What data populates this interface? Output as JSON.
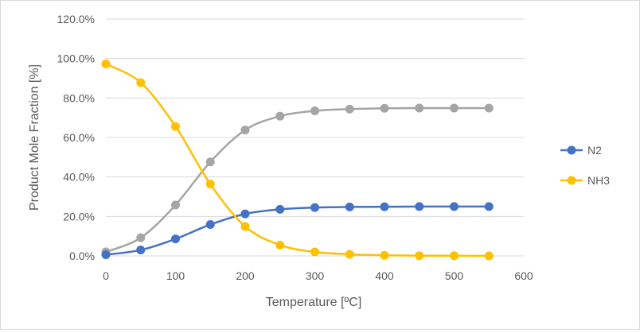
{
  "chart_data": {
    "type": "line",
    "title": "",
    "xlabel": "Temperature [ºC]",
    "ylabel": "Product Mole Fraction [%]",
    "xlim": [
      0,
      600
    ],
    "ylim": [
      0,
      120
    ],
    "x_ticks": [
      "0",
      "100",
      "200",
      "300",
      "400",
      "500",
      "600"
    ],
    "y_ticks": [
      "0.0%",
      "20.0%",
      "40.0%",
      "60.0%",
      "80.0%",
      "100.0%",
      "120.0%"
    ],
    "x_tick_values": [
      0,
      100,
      200,
      300,
      400,
      500,
      600
    ],
    "y_tick_values": [
      0,
      20,
      40,
      60,
      80,
      100,
      120
    ],
    "grid": "horizontal",
    "smooth": true,
    "legend_position": "right",
    "x": [
      0,
      50,
      100,
      150,
      200,
      250,
      300,
      350,
      400,
      450,
      500,
      550
    ],
    "series": [
      {
        "name": "",
        "color": "#a5a5a5",
        "values": [
          2.0,
          9.2,
          25.8,
          47.6,
          63.8,
          70.8,
          73.5,
          74.4,
          74.8,
          74.9,
          74.9,
          74.9
        ]
      },
      {
        "name": "N2",
        "color": "#4472c4",
        "values": [
          0.6,
          3.0,
          8.6,
          15.9,
          21.3,
          23.6,
          24.5,
          24.8,
          24.9,
          25.0,
          25.0,
          25.0
        ]
      },
      {
        "name": "NH3",
        "color": "#ffc000",
        "values": [
          97.3,
          87.8,
          65.6,
          36.4,
          14.9,
          5.5,
          2.0,
          0.8,
          0.3,
          0.1,
          0.1,
          0.0
        ]
      }
    ]
  }
}
